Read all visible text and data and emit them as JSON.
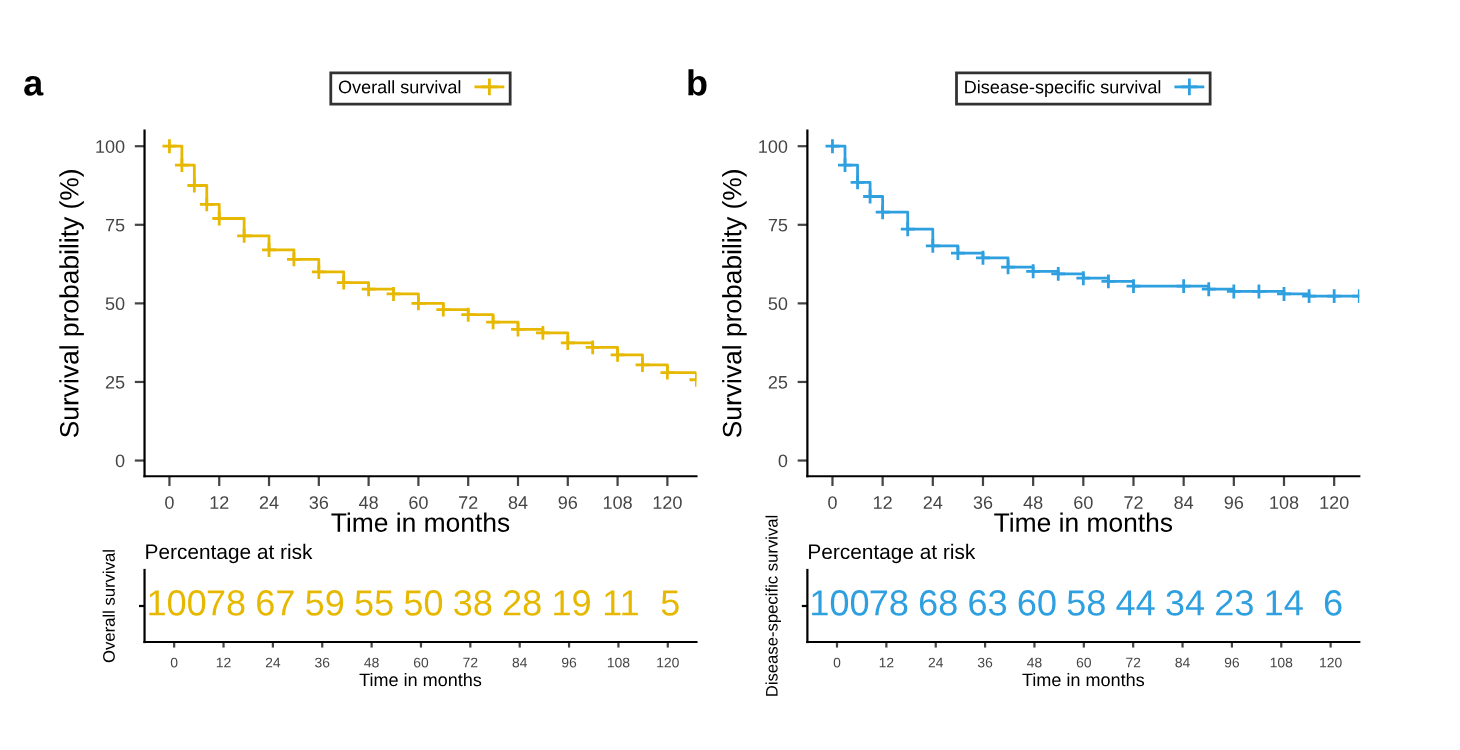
{
  "chart_data": [
    {
      "type": "step",
      "title": "a",
      "xlabel": "Time in months",
      "ylabel": "Survival probability (%)",
      "legend": "top",
      "marker": "cross",
      "x": [
        0,
        3,
        6,
        9,
        12,
        18,
        24,
        30,
        36,
        42,
        48,
        54,
        60,
        66,
        72,
        78,
        84,
        90,
        96,
        102,
        108,
        114,
        120,
        127
      ],
      "series": [
        {
          "name": "Overall survival",
          "color": "#e7b800",
          "values": [
            100,
            94,
            87.5,
            81.5,
            77,
            71.5,
            67,
            64,
            60,
            56.6,
            54.5,
            53,
            50,
            48,
            46.4,
            44,
            41.7,
            40.6,
            37.4,
            36,
            33.6,
            30.4,
            28,
            25.7
          ]
        }
      ],
      "xlim": [
        -6,
        127
      ],
      "xticks": [
        0,
        12,
        24,
        36,
        48,
        60,
        72,
        84,
        96,
        108,
        120
      ],
      "ylim": [
        -5,
        105
      ],
      "yticks": [
        0,
        25,
        50,
        75,
        100
      ]
    },
    {
      "type": "step",
      "title": "b",
      "xlabel": "Time in months",
      "ylabel": "Survival probability (%)",
      "legend": "top",
      "marker": "cross",
      "x": [
        0,
        3,
        6,
        9,
        12,
        18,
        24,
        30,
        36,
        42,
        48,
        54,
        60,
        66,
        72,
        84,
        90,
        96,
        102,
        108,
        114,
        120,
        126
      ],
      "series": [
        {
          "name": "Disease-specific survival",
          "color": "#2e9fdf",
          "values": [
            100,
            94,
            88.5,
            84,
            79,
            73.6,
            68.3,
            66,
            64.5,
            61.5,
            60.2,
            59.4,
            58,
            57,
            55.5,
            55.5,
            54.5,
            53.8,
            53.8,
            53,
            52.3,
            52.3,
            52.3
          ]
        }
      ],
      "xlim": [
        -6,
        126
      ],
      "xticks": [
        0,
        12,
        24,
        36,
        48,
        60,
        72,
        84,
        96,
        108,
        120
      ],
      "ylim": [
        -5,
        105
      ],
      "yticks": [
        0,
        25,
        50,
        75,
        100
      ]
    },
    {
      "type": "heatmap",
      "title": "Percentage at risk",
      "xlabel": "Time in months",
      "ylabel": "Overall survival",
      "data_labels": true,
      "categories": [
        "0",
        "12",
        "24",
        "36",
        "48",
        "60",
        "72",
        "84",
        "96",
        "108",
        "120"
      ],
      "y_categories": [
        null
      ],
      "cells": [
        [
          100,
          78,
          67,
          59,
          55,
          50,
          38,
          28,
          19,
          11,
          5
        ]
      ],
      "color": "#e7b800"
    },
    {
      "type": "heatmap",
      "title": "Percentage at risk",
      "xlabel": "Time in months",
      "ylabel": "Disease-specific survival",
      "data_labels": true,
      "categories": [
        "0",
        "12",
        "24",
        "36",
        "48",
        "60",
        "72",
        "84",
        "96",
        "108",
        "120"
      ],
      "y_categories": [
        null
      ],
      "cells": [
        [
          100,
          78,
          68,
          63,
          60,
          58,
          44,
          34,
          23,
          14,
          6
        ]
      ],
      "color": "#2e9fdf"
    }
  ]
}
